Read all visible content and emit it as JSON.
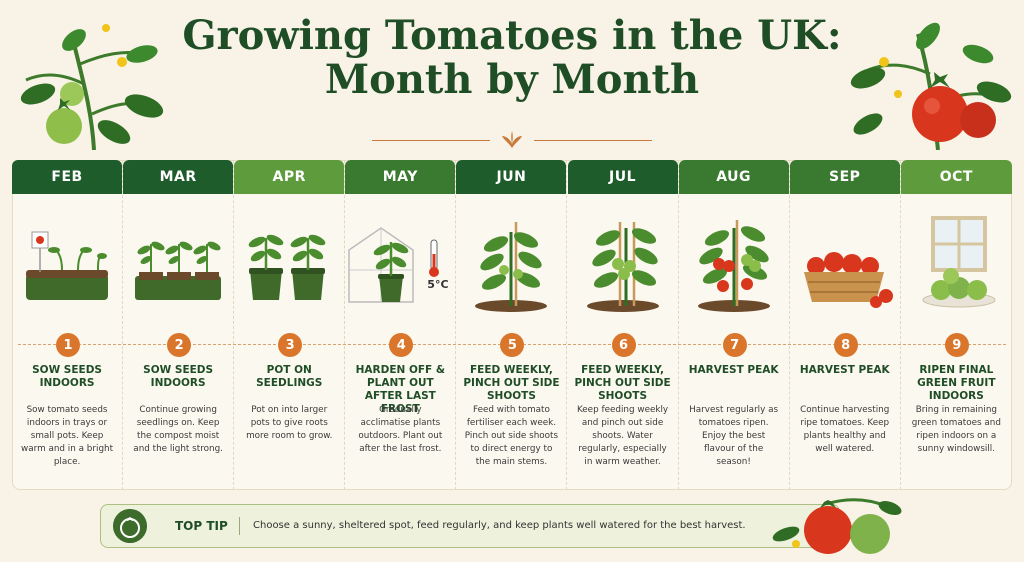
{
  "title_line1": "Growing Tomatoes in the UK:",
  "title_line2": "Month by Month",
  "colors": {
    "dark_green": "#1f5c2b",
    "mid_green": "#3a7a30",
    "light_green": "#5e9b3c",
    "orange": "#d9762b",
    "title": "#1f4d26"
  },
  "months": [
    {
      "month": "FEB",
      "step": "1",
      "title": "SOW SEEDS INDOORS",
      "desc": "Sow tomato seeds indoors in trays or small pots. Keep warm and in a bright place.",
      "illus": "seed-tray-icon"
    },
    {
      "month": "MAR",
      "step": "2",
      "title": "SOW SEEDS INDOORS",
      "desc": "Continue growing seedlings on. Keep the compost moist and the light strong.",
      "illus": "seedlings-tray-icon"
    },
    {
      "month": "APR",
      "step": "3",
      "title": "POT ON SEEDLINGS",
      "desc": "Pot on into larger pots to give roots more room to grow.",
      "illus": "potted-seedlings-icon"
    },
    {
      "month": "MAY",
      "step": "4",
      "title": "HARDEN OFF & PLANT OUT AFTER LAST FROST",
      "desc": "Gradually acclimatise plants outdoors. Plant out after the last frost.",
      "illus": "greenhouse-thermometer-icon",
      "temp": "5°C"
    },
    {
      "month": "JUN",
      "step": "5",
      "title": "FEED WEEKLY, PINCH OUT SIDE SHOOTS",
      "desc": "Feed with tomato fertiliser each week. Pinch out side shoots to direct energy to the main stems.",
      "illus": "staked-plant-icon"
    },
    {
      "month": "JUL",
      "step": "6",
      "title": "FEED WEEKLY, PINCH OUT SIDE SHOOTS",
      "desc": "Keep feeding weekly and pinch out side shoots. Water regularly, especially in warm weather.",
      "illus": "fruiting-plant-icon"
    },
    {
      "month": "AUG",
      "step": "7",
      "title": "HARVEST PEAK",
      "desc": "Harvest regularly as tomatoes ripen. Enjoy the best flavour of the season!",
      "illus": "ripe-plant-icon"
    },
    {
      "month": "SEP",
      "step": "8",
      "title": "HARVEST PEAK",
      "desc": "Continue harvesting ripe tomatoes. Keep plants healthy and well watered.",
      "illus": "tomato-basket-icon"
    },
    {
      "month": "OCT",
      "step": "9",
      "title": "RIPEN FINAL GREEN FRUIT INDOORS",
      "desc": "Bring in remaining green tomatoes and ripen indoors on a sunny windowsill.",
      "illus": "windowsill-green-tomatoes-icon"
    }
  ],
  "tip": {
    "label": "TOP TIP",
    "text": "Choose a sunny, sheltered spot, feed regularly, and keep plants well watered for the best harvest.",
    "icon": "tomato-icon"
  }
}
